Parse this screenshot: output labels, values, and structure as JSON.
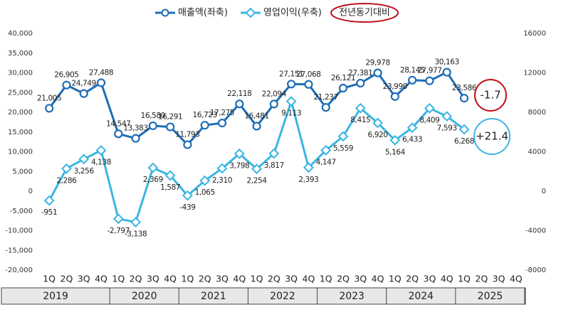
{
  "chart_data": {
    "type": "line",
    "categories": [
      "1Q",
      "2Q",
      "3Q",
      "4Q",
      "1Q",
      "2Q",
      "3Q",
      "4Q",
      "1Q",
      "2Q",
      "3Q",
      "4Q",
      "1Q",
      "2Q",
      "3Q",
      "4Q",
      "1Q",
      "2Q",
      "3Q",
      "4Q",
      "1Q",
      "2Q",
      "3Q",
      "4Q",
      "1Q",
      "2Q",
      "3Q",
      "4Q"
    ],
    "years": [
      "2019",
      "2020",
      "2021",
      "2022",
      "2023",
      "2024",
      "2025"
    ],
    "series": [
      {
        "name": "매출액(좌축)",
        "color": "#1f6db5",
        "marker": "circle",
        "values": [
          21005,
          26905,
          24749,
          27488,
          14547,
          13383,
          16580,
          16291,
          11793,
          16723,
          17275,
          22118,
          16481,
          22094,
          27151,
          27068,
          21237,
          26121,
          27381,
          29978,
          23990,
          28145,
          27977,
          30163,
          23586,
          null,
          null,
          null
        ],
        "value_labels": [
          "21,005",
          "26,905",
          "24,749",
          "27,488",
          "14,547",
          "13,383",
          "16,580",
          "16,291",
          "11,793",
          "16,723",
          "17,275",
          "22,118",
          "16,481",
          "22,094",
          "27,151",
          "27,068",
          "21,237",
          "26,121",
          "27,381",
          "29,978",
          "23,990",
          "28,145",
          "27,977",
          "30,163",
          "23,586",
          null,
          null,
          null
        ]
      },
      {
        "name": "영업이익(우축)",
        "color": "#3bb5e3",
        "marker": "diamond",
        "axis": "y2",
        "values": [
          -951,
          2286,
          3256,
          4138,
          -2797,
          -3138,
          2369,
          1587,
          -439,
          1065,
          2310,
          3798,
          2254,
          3817,
          9113,
          2393,
          4147,
          5559,
          8415,
          6920,
          5164,
          6433,
          8409,
          7593,
          6268,
          null,
          null,
          null
        ],
        "value_labels": [
          "-951",
          "2,286",
          "3,256",
          "4,138",
          "-2,797",
          "-3,138",
          "2,369",
          "1,587",
          "-439",
          "1,065",
          "2,310",
          "3,798",
          "2,254",
          "3,817",
          "9,113",
          "2,393",
          "4,147",
          "5,559",
          "8,415",
          "6,920",
          "5,164",
          "6,433",
          "8,409",
          "7,593",
          "6,268",
          null,
          null,
          null
        ]
      }
    ],
    "ylim": [
      -20000,
      40000
    ],
    "yticks": [
      {
        "value": -20000,
        "label": "-20,000"
      },
      {
        "value": -15000,
        "label": "-15,000"
      },
      {
        "value": -10000,
        "label": "-10,000"
      },
      {
        "value": -5000,
        "label": "-5,000"
      },
      0,
      {
        "value": 5000,
        "label": "5,000"
      },
      {
        "value": 10000,
        "label": "10,000"
      },
      {
        "value": 15000,
        "label": "15,000"
      },
      {
        "value": 20000,
        "label": "20,000"
      },
      {
        "value": 25000,
        "label": "25,000"
      },
      {
        "value": 30000,
        "label": "30,000"
      },
      {
        "value": 35000,
        "label": "35,000"
      },
      {
        "value": 40000,
        "label": "40,000"
      }
    ],
    "y2lim": [
      -8000,
      16000
    ],
    "y2ticks": [
      -8000,
      -4000,
      0,
      4000,
      8000,
      12000,
      16000
    ],
    "legend_extra": "전년동기대비",
    "annotations": [
      {
        "text": "-1.7",
        "color": "#c0121b"
      },
      {
        "text": "+21.4",
        "color": "#3bb5e3"
      }
    ]
  }
}
